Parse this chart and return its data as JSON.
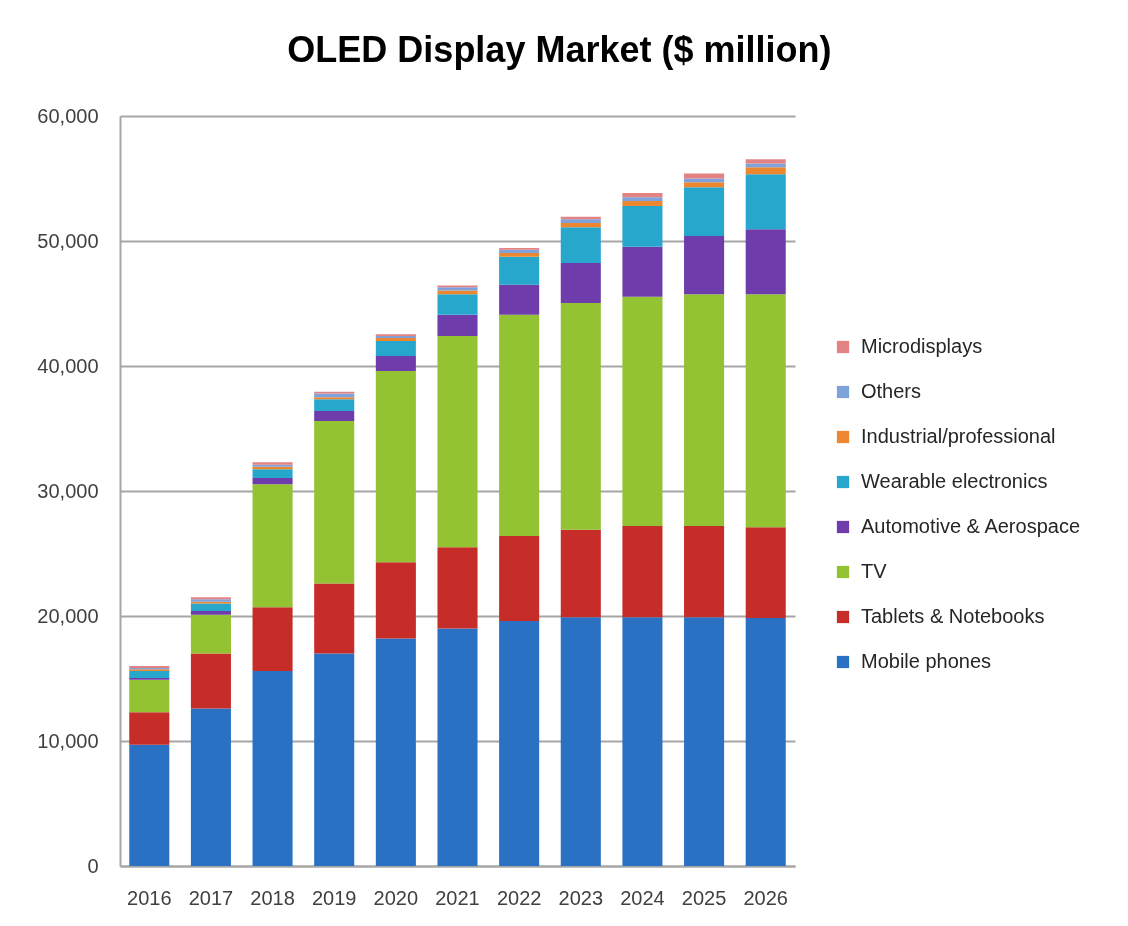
{
  "chart_data": {
    "type": "bar",
    "title": "OLED Display Market ($ million)",
    "stacked": true,
    "grid": "y",
    "legend": "right",
    "categories": [
      "2016",
      "2017",
      "2018",
      "2019",
      "2020",
      "2021",
      "2022",
      "2023",
      "2024",
      "2025",
      "2026"
    ],
    "ylim": [
      0,
      60000
    ],
    "yticks": [
      0,
      {
        "value": 10000,
        "label": "10,000"
      },
      {
        "value": 20000,
        "label": "20,000"
      },
      {
        "value": 30000,
        "label": "30,000"
      },
      {
        "value": 40000,
        "label": "40,000"
      },
      {
        "value": 50000,
        "label": "50,000"
      },
      {
        "value": 60000,
        "label": "60,000"
      }
    ],
    "series": [
      {
        "name": "Mobile phones",
        "color": "#2a71c3",
        "values": [
          9700,
          12600,
          15600,
          17000,
          18200,
          19000,
          19600,
          19900,
          19900,
          19900,
          19850
        ]
      },
      {
        "name": "Tablets & Notebooks",
        "color": "#c62d29",
        "values": [
          2600,
          4400,
          5100,
          5600,
          6100,
          6500,
          6800,
          7000,
          7300,
          7300,
          7250
        ]
      },
      {
        "name": "TV",
        "color": "#93c232",
        "values": [
          2600,
          3100,
          9850,
          13000,
          15300,
          16900,
          17700,
          18150,
          18350,
          18550,
          18650
        ]
      },
      {
        "name": "Automotive & Aerospace",
        "color": "#6e3dab",
        "values": [
          150,
          300,
          500,
          800,
          1200,
          1700,
          2400,
          3200,
          4000,
          4650,
          5200
        ]
      },
      {
        "name": "Wearable electronics",
        "color": "#27a7cb",
        "values": [
          550,
          600,
          700,
          950,
          1200,
          1650,
          2250,
          2850,
          3250,
          3900,
          4400
        ]
      },
      {
        "name": "Industrial/professional",
        "color": "#ec872f",
        "values": [
          150,
          150,
          200,
          150,
          250,
          300,
          300,
          350,
          400,
          400,
          550
        ]
      },
      {
        "name": "Others",
        "color": "#7fa1dc",
        "values": [
          100,
          200,
          150,
          300,
          150,
          250,
          250,
          300,
          300,
          300,
          300
        ]
      },
      {
        "name": "Microdisplays",
        "color": "#e38282",
        "values": [
          150,
          150,
          200,
          150,
          150,
          150,
          150,
          200,
          350,
          400,
          350
        ]
      }
    ]
  }
}
